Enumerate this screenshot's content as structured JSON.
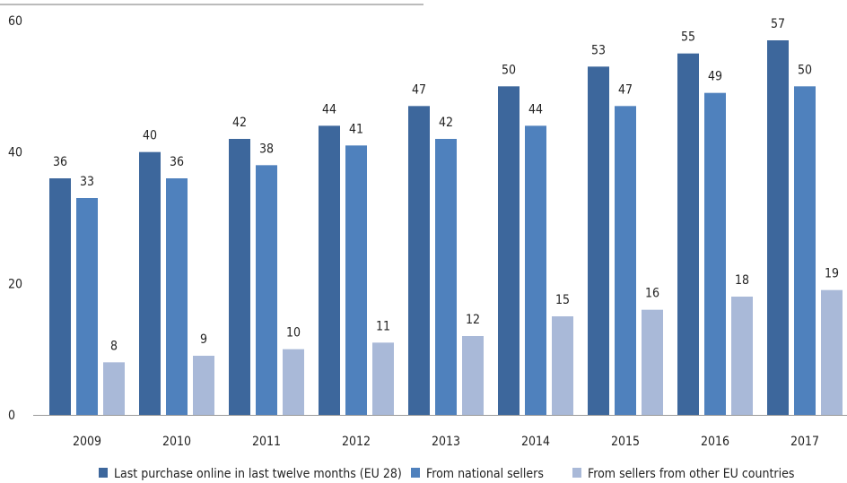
{
  "chart_data": {
    "type": "bar",
    "categories": [
      "2009",
      "2010",
      "2011",
      "2012",
      "2013",
      "2014",
      "2015",
      "2016",
      "2017"
    ],
    "series": [
      {
        "name": "Last purchase online in last twelve months (EU 28)",
        "color": "#3d679c",
        "values": [
          36,
          40,
          42,
          44,
          47,
          50,
          53,
          55,
          57
        ]
      },
      {
        "name": "From national sellers",
        "color": "#4f81bd",
        "values": [
          33,
          36,
          38,
          41,
          42,
          44,
          47,
          49,
          50
        ]
      },
      {
        "name": "From sellers from other EU countries",
        "color": "#a9b9d8",
        "values": [
          8,
          9,
          10,
          11,
          12,
          15,
          16,
          18,
          19
        ]
      }
    ],
    "yticks": [
      "0",
      "20",
      "40",
      "60"
    ],
    "ylim": [
      0,
      60
    ],
    "title": "",
    "xlabel": "",
    "ylabel": "",
    "legend_position": "bottom",
    "grid": false
  }
}
